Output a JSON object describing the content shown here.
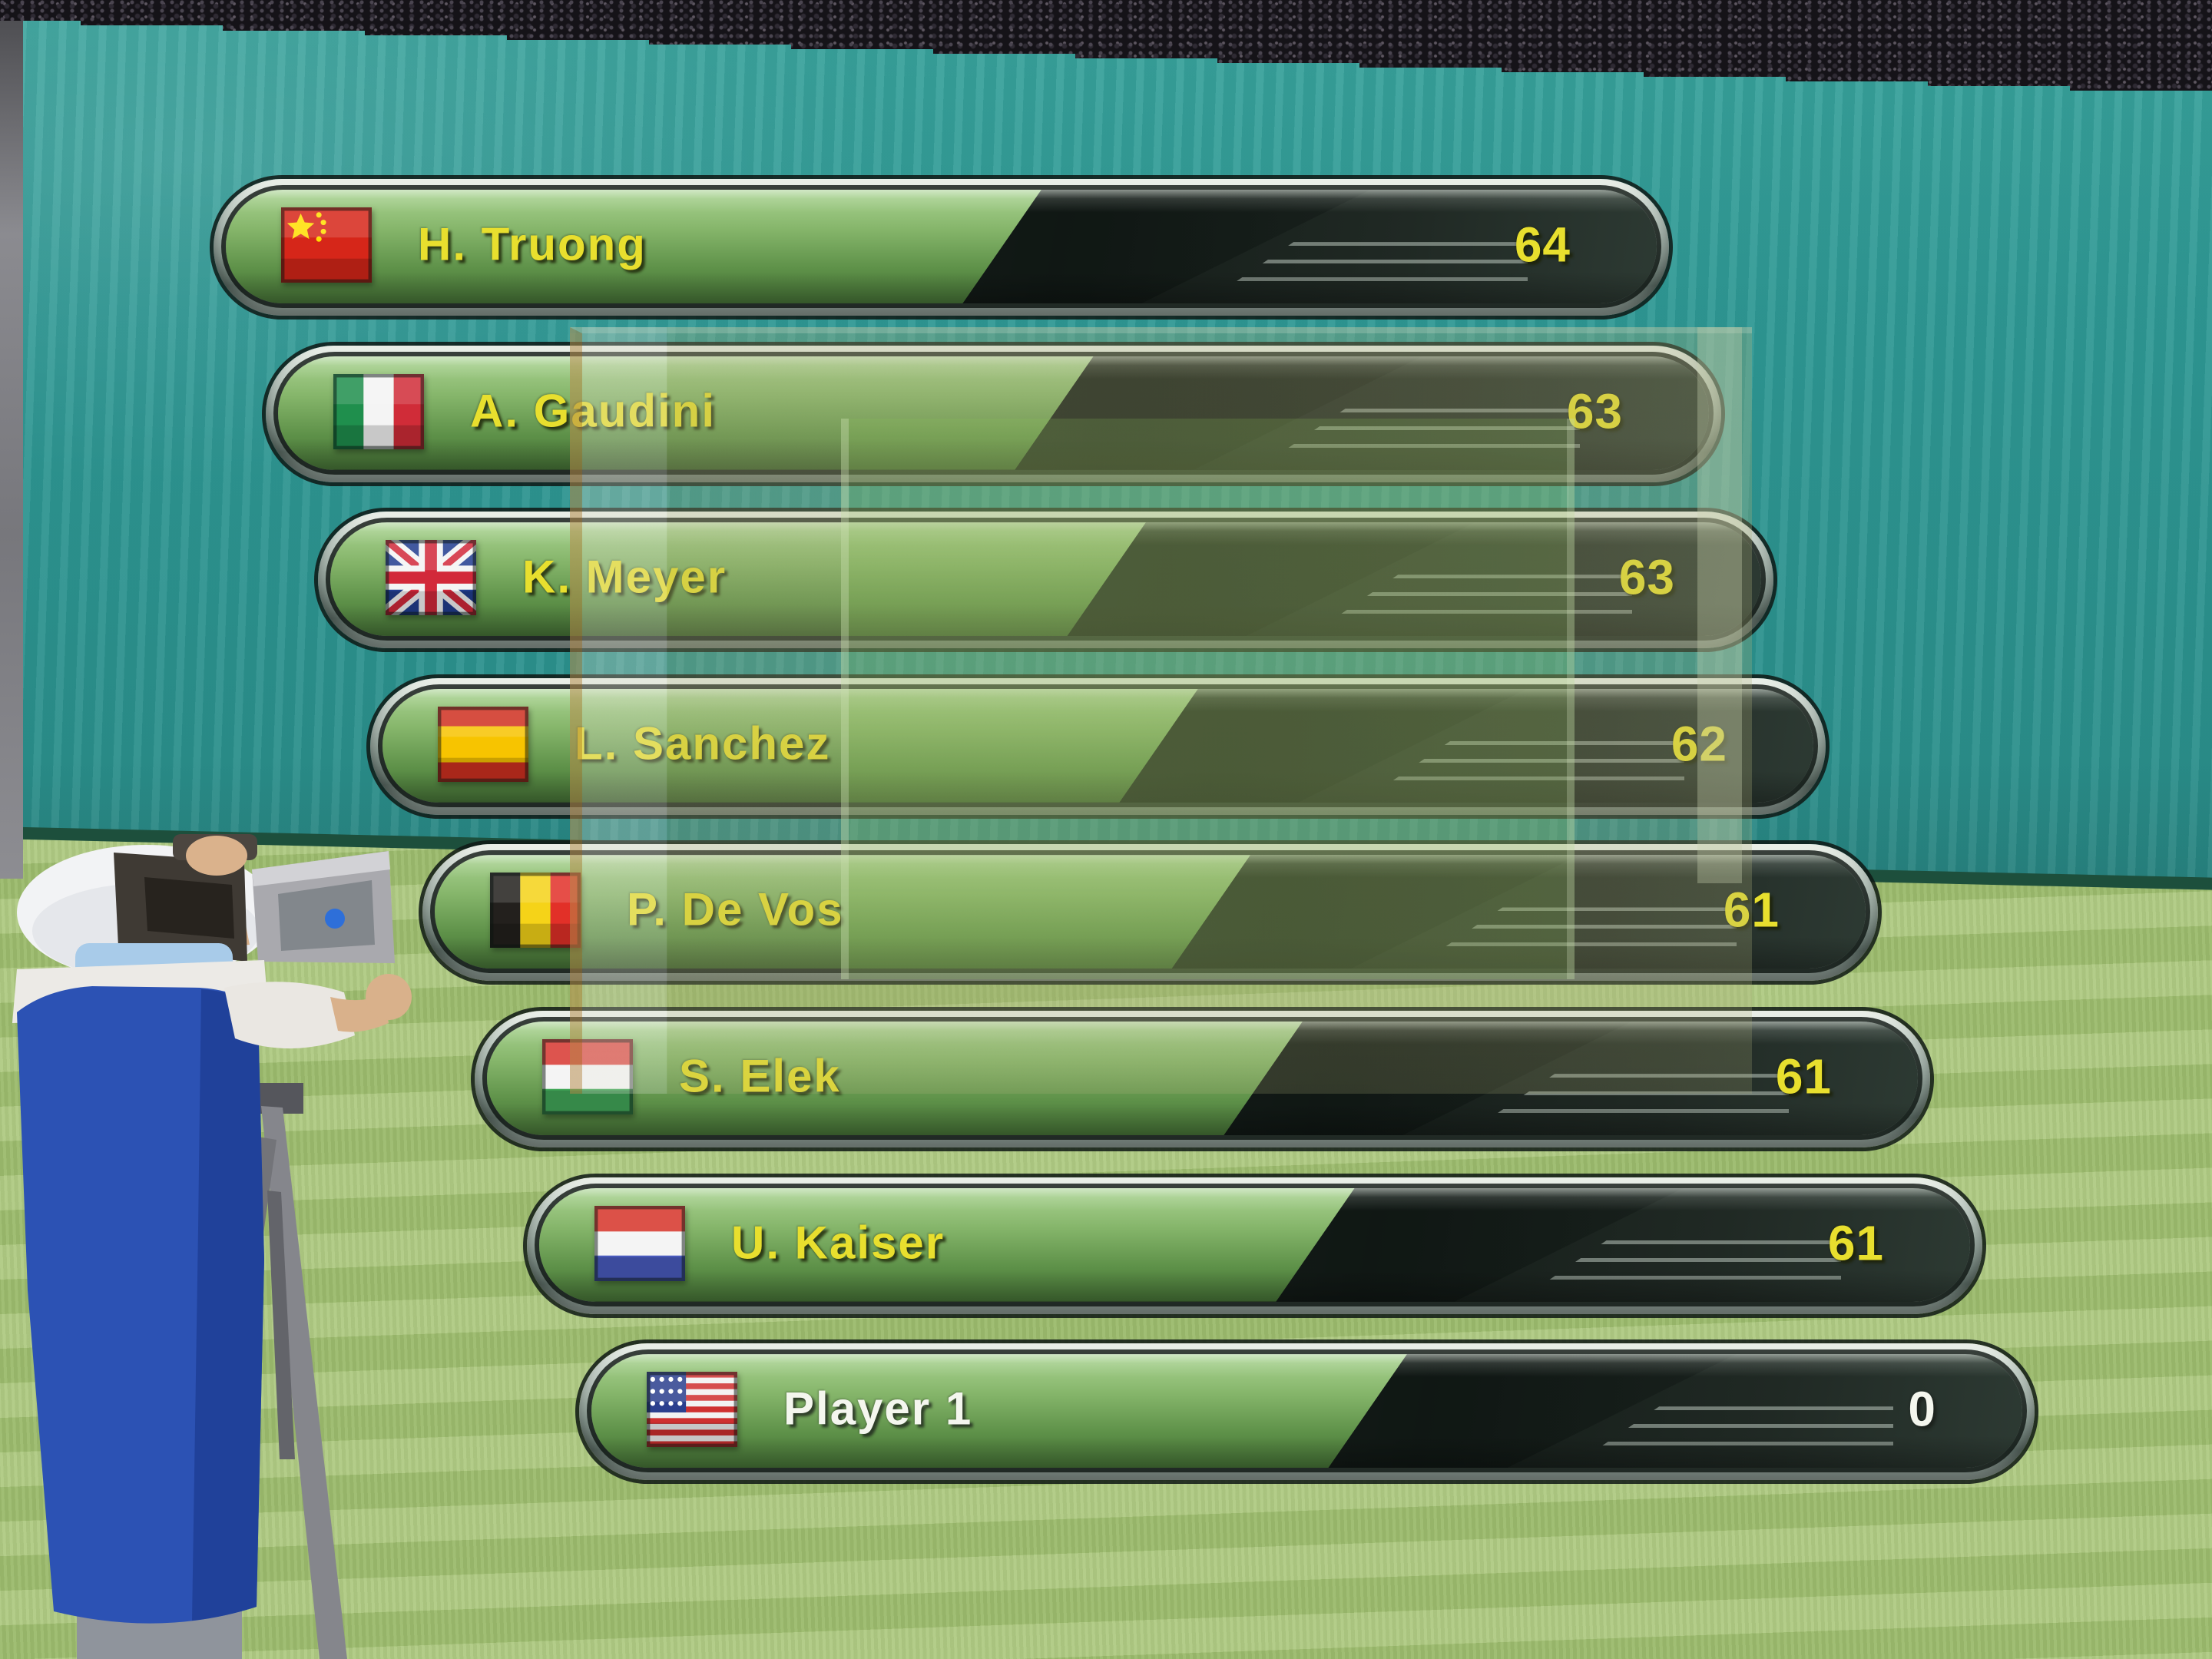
{
  "screen": {
    "type": "in-game leaderboard overlay"
  },
  "leaderboard": {
    "rows": [
      {
        "name": "H. Truong",
        "score": "64",
        "country": "china",
        "highlight": false
      },
      {
        "name": "A. Gaudini",
        "score": "63",
        "country": "italy",
        "highlight": false
      },
      {
        "name": "K. Meyer",
        "score": "63",
        "country": "uk",
        "highlight": false
      },
      {
        "name": "L. Sanchez",
        "score": "62",
        "country": "spain",
        "highlight": false
      },
      {
        "name": "P. De Vos",
        "score": "61",
        "country": "belgium",
        "highlight": false
      },
      {
        "name": "S. Elek",
        "score": "61",
        "country": "hungary",
        "highlight": false
      },
      {
        "name": "U. Kaiser",
        "score": "61",
        "country": "netherlands",
        "highlight": false
      },
      {
        "name": "Player 1",
        "score": "0",
        "country": "usa",
        "highlight": true
      }
    ],
    "name_color": "#e8df2e",
    "highlight_color": "#f4f6ee"
  },
  "scene": {
    "wall_color": "#2f9691",
    "grass_color": "#a6c475",
    "crowd_color": "#151318",
    "bar_rim_light": "#f0f5ee",
    "bar_rim_dark": "#5f6f68",
    "bar_green_light": "#abd492",
    "bar_green_dark": "#497839",
    "bar_dark_fill": "#151d19"
  }
}
